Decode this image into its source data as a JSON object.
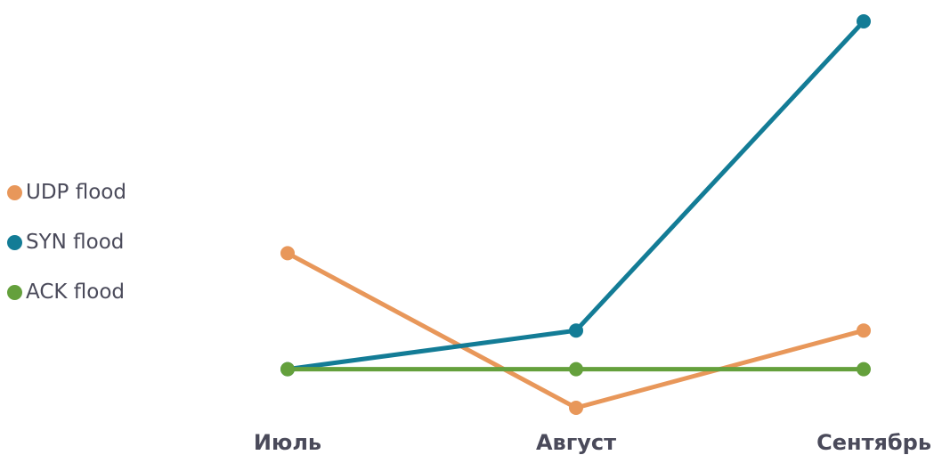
{
  "chart_data": {
    "type": "line",
    "title": "",
    "xlabel": "",
    "ylabel": "",
    "categories": [
      "Июль",
      "Август",
      "Сентябрь"
    ],
    "ylim": [
      0,
      10
    ],
    "grid": false,
    "legend_position": "left",
    "series": [
      {
        "name": "UDP flood",
        "color": "#e8975a",
        "values": [
          4.0,
          0,
          2.0
        ]
      },
      {
        "name": "SYN flood",
        "color": "#137c96",
        "values": [
          1.0,
          2.0,
          10.0
        ]
      },
      {
        "name": "ACK flood",
        "color": "#64a03c",
        "values": [
          1.0,
          1.0,
          1.0
        ]
      }
    ]
  }
}
